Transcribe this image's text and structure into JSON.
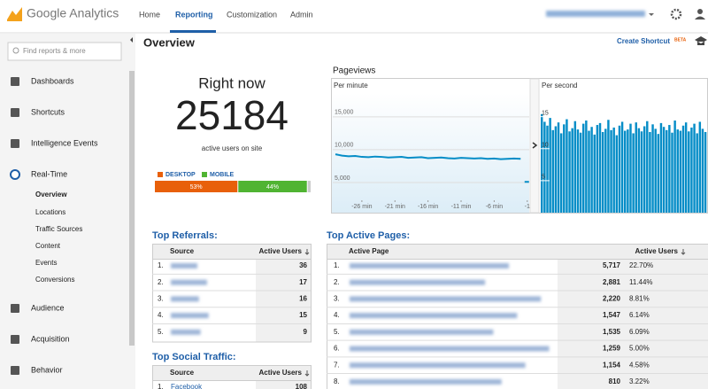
{
  "header": {
    "product": "Google Analytics",
    "nav": [
      "Home",
      "Reporting",
      "Customization",
      "Admin"
    ]
  },
  "sidebar": {
    "search_placeholder": "Find reports & more",
    "items": [
      "Dashboards",
      "Shortcuts",
      "Intelligence Events",
      "Real-Time"
    ],
    "realtime_subitems": [
      "Overview",
      "Locations",
      "Traffic Sources",
      "Content",
      "Events",
      "Conversions"
    ],
    "items_after": [
      "Audience",
      "Acquisition",
      "Behavior"
    ]
  },
  "page": {
    "title": "Overview",
    "create_shortcut": "Create Shortcut",
    "beta": "BETA"
  },
  "right_now": {
    "title": "Right now",
    "count": "25184",
    "caption": "active users on site",
    "devices": [
      {
        "name": "DESKTOP",
        "share": "53%",
        "color": "#e8600a"
      },
      {
        "name": "MOBILE",
        "share": "44%",
        "color": "#50b432"
      }
    ]
  },
  "pageviews": {
    "title": "Pageviews",
    "per_minute": {
      "type": "line",
      "label": "Per minute",
      "color": "#058dc7",
      "x": [
        -30,
        -29,
        -28,
        -27,
        -26,
        -25,
        -24,
        -23,
        -22,
        -21,
        -20,
        -19,
        -18,
        -17,
        -16,
        -15,
        -14,
        -13,
        -12,
        -11,
        -10,
        -9,
        -8,
        -7,
        -6,
        -5,
        -4,
        -3,
        -2
      ],
      "values": [
        9300,
        9100,
        9000,
        9050,
        8900,
        8850,
        8950,
        8900,
        8800,
        8850,
        8900,
        8750,
        8800,
        8850,
        8700,
        8750,
        8800,
        8700,
        8650,
        8750,
        8700,
        8650,
        8700,
        8600,
        8650,
        8550,
        8600,
        8650,
        8600
      ],
      "current": {
        "x": -1,
        "value": 5100
      },
      "xlim": [
        -30.4,
        -0.7
      ],
      "ylim": [
        2300,
        17000
      ],
      "yticks": [
        {
          "value": 15000,
          "label": "15,000"
        },
        {
          "value": 10000,
          "label": "10,000"
        },
        {
          "value": 5000,
          "label": "5,000"
        }
      ],
      "xticks": [
        {
          "value": -26,
          "label": "-26 min"
        },
        {
          "value": -21,
          "label": "-21 min"
        },
        {
          "value": -16,
          "label": "-16 min"
        },
        {
          "value": -11,
          "label": "-11 min"
        },
        {
          "value": -6,
          "label": "-6 min"
        },
        -1
      ]
    },
    "per_second": {
      "type": "bar",
      "label": "Per second",
      "color": "#058dc7",
      "values": [
        15.4,
        14.2,
        13.6,
        14.8,
        12.9,
        13.5,
        14.1,
        12.4,
        13.8,
        14.6,
        12.7,
        13.2,
        14.3,
        13.0,
        12.5,
        13.9,
        14.4,
        12.8,
        13.4,
        12.2,
        13.7,
        14.0,
        12.6,
        13.1,
        14.5,
        12.9,
        13.3,
        12.1,
        13.6,
        14.2,
        12.8,
        13.0,
        13.9,
        12.4,
        14.1,
        13.2,
        12.7,
        13.5,
        14.3,
        12.6,
        13.8,
        13.1,
        12.3,
        14.0,
        13.4,
        12.9,
        13.7,
        12.5,
        14.4,
        13.0,
        12.8,
        13.6,
        14.1,
        12.7,
        13.3,
        13.9,
        12.4,
        14.2,
        13.1,
        12.6
      ],
      "ylim": [
        0,
        16.2
      ],
      "yticks": [
        15,
        10,
        5
      ]
    }
  },
  "top_referrals": {
    "title": "Top Referrals:",
    "columns": [
      "Source",
      "Active Users"
    ],
    "rows": [
      [
        "1.",
        "36"
      ],
      [
        "2.",
        "17"
      ],
      [
        "3.",
        "16"
      ],
      [
        "4.",
        "15"
      ],
      [
        "5.",
        "9"
      ]
    ]
  },
  "top_social": {
    "title": "Top Social Traffic:",
    "columns": [
      "Source",
      "Active Users"
    ],
    "rows": [
      [
        "1.",
        "Facebook",
        "108"
      ]
    ]
  },
  "top_pages": {
    "title": "Top Active Pages:",
    "columns": [
      "Active Page",
      "Active Users"
    ],
    "rows": [
      [
        "1.",
        "5,717",
        "22.70%"
      ],
      [
        "2.",
        "2,881",
        "11.44%"
      ],
      [
        "3.",
        "2,220",
        "8.81%"
      ],
      [
        "4.",
        "1,547",
        "6.14%"
      ],
      [
        "5.",
        "1,535",
        "6.09%"
      ],
      [
        "6.",
        "1,259",
        "5.00%"
      ],
      [
        "7.",
        "1,154",
        "4.58%"
      ],
      [
        "8.",
        "810",
        "3.22%"
      ]
    ]
  }
}
